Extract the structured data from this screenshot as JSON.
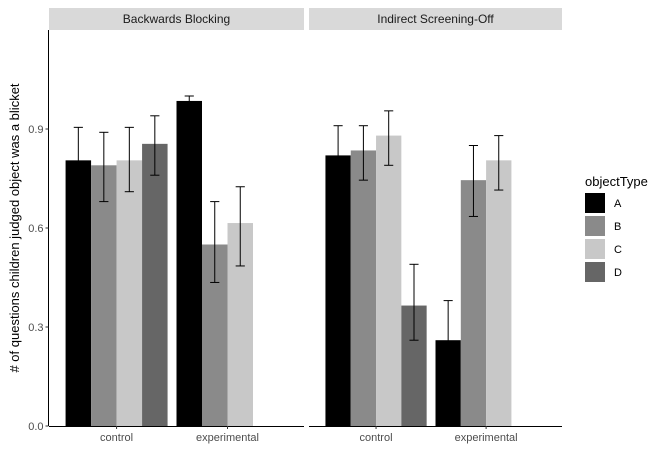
{
  "chart_data": {
    "type": "bar",
    "ylabel": "# of questions children judged object was a blicket",
    "xlabel": "",
    "ylim": [
      0,
      1.2
    ],
    "yticks": [
      0.0,
      0.3,
      0.6,
      0.9
    ],
    "ytick_labels": [
      "0.0",
      "0.3",
      "0.6",
      "0.9"
    ],
    "legend": {
      "title": "objectType",
      "position": "right"
    },
    "series": [
      {
        "name": "A",
        "color": "#000000"
      },
      {
        "name": "B",
        "color": "#8a8a8a"
      },
      {
        "name": "C",
        "color": "#c8c8c8"
      },
      {
        "name": "D",
        "color": "#666666"
      }
    ],
    "facets": [
      {
        "title": "Backwards Blocking",
        "categories": [
          {
            "label": "control",
            "bars": [
              {
                "series": "A",
                "value": 0.805,
                "err_low": 0.705,
                "err_high": 0.905
              },
              {
                "series": "B",
                "value": 0.79,
                "err_low": 0.68,
                "err_high": 0.89
              },
              {
                "series": "C",
                "value": 0.805,
                "err_low": 0.71,
                "err_high": 0.905
              },
              {
                "series": "D",
                "value": 0.855,
                "err_low": 0.76,
                "err_high": 0.94
              }
            ]
          },
          {
            "label": "experimental",
            "bars": [
              {
                "series": "A",
                "value": 0.985,
                "err_low": 0.975,
                "err_high": 1.0
              },
              {
                "series": "B",
                "value": 0.55,
                "err_low": 0.435,
                "err_high": 0.68
              },
              {
                "series": "C",
                "value": 0.615,
                "err_low": 0.485,
                "err_high": 0.725
              }
            ]
          }
        ]
      },
      {
        "title": "Indirect Screening-Off",
        "categories": [
          {
            "label": "control",
            "bars": [
              {
                "series": "A",
                "value": 0.82,
                "err_low": 0.73,
                "err_high": 0.91
              },
              {
                "series": "B",
                "value": 0.835,
                "err_low": 0.745,
                "err_high": 0.91
              },
              {
                "series": "C",
                "value": 0.88,
                "err_low": 0.79,
                "err_high": 0.955
              },
              {
                "series": "D",
                "value": 0.365,
                "err_low": 0.26,
                "err_high": 0.49
              }
            ]
          },
          {
            "label": "experimental",
            "bars": [
              {
                "series": "A",
                "value": 0.26,
                "err_low": 0.14,
                "err_high": 0.38
              },
              {
                "series": "B",
                "value": 0.745,
                "err_low": 0.635,
                "err_high": 0.85
              },
              {
                "series": "C",
                "value": 0.805,
                "err_low": 0.715,
                "err_high": 0.88
              }
            ]
          }
        ]
      }
    ]
  }
}
